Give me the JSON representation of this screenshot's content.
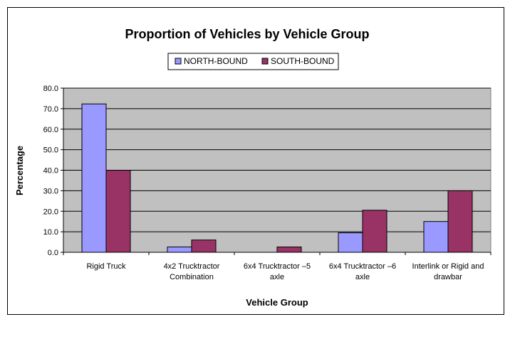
{
  "chart_data": {
    "type": "bar",
    "title": "Proportion of Vehicles by Vehicle Group",
    "xlabel": "Vehicle Group",
    "ylabel": "Percentage",
    "categories": [
      [
        "Rigid Truck"
      ],
      [
        "4x2 Trucktractor",
        "Combination"
      ],
      [
        "6x4 Trucktractor –5",
        "axle"
      ],
      [
        "6x4 Trucktractor –6",
        "axle"
      ],
      [
        "Interlink or Rigid and",
        "drawbar"
      ]
    ],
    "series": [
      {
        "name": "NORTH-BOUND",
        "color": "#9999FF",
        "values": [
          72.3,
          2.6,
          0.0,
          9.5,
          15.0
        ]
      },
      {
        "name": "SOUTH-BOUND",
        "color": "#993366",
        "values": [
          40.0,
          6.0,
          2.6,
          20.5,
          30.0
        ]
      }
    ],
    "ylim": [
      0,
      80
    ],
    "yticks": [
      "0.0",
      "10.0",
      "20.0",
      "30.0",
      "40.0",
      "50.0",
      "60.0",
      "70.0",
      "80.0"
    ],
    "grid": true,
    "plot_background": "#C0C0C0",
    "legend_position": "top-center"
  }
}
